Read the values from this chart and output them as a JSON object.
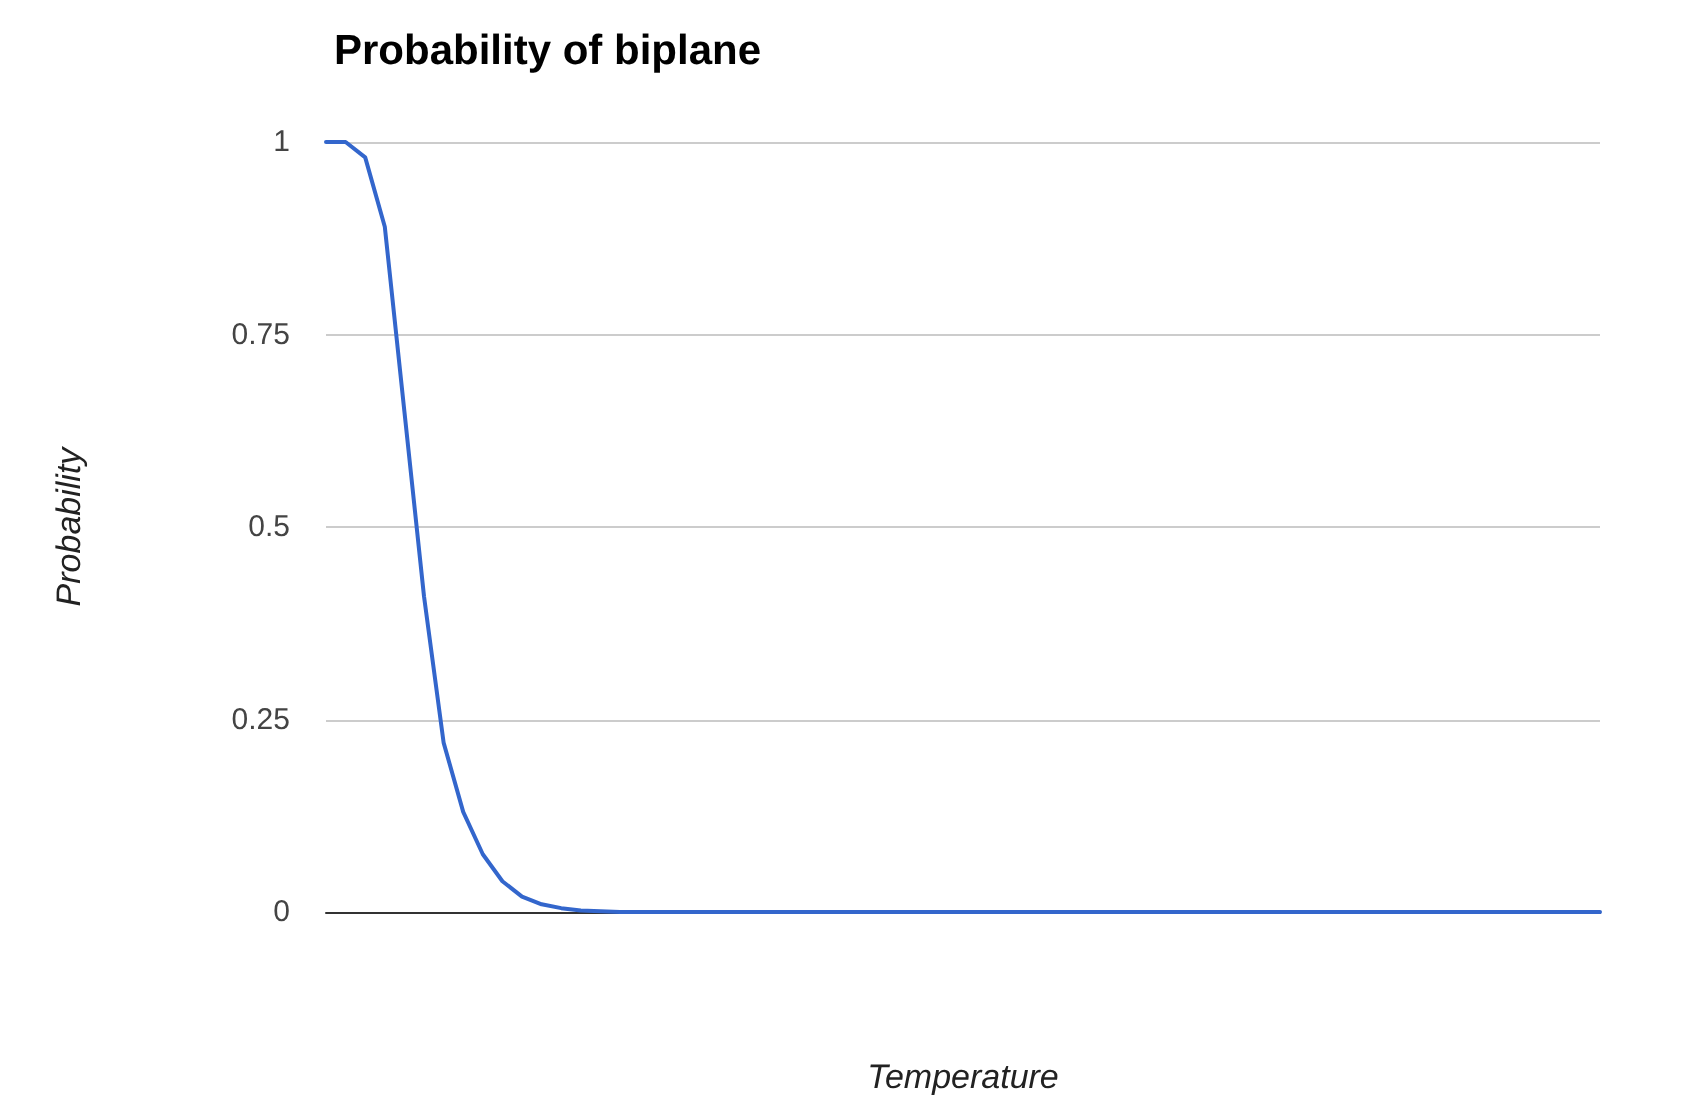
{
  "chart_data": {
    "type": "line",
    "title": "Probability of biplane",
    "xlabel": "Temperature",
    "ylabel": "Probability",
    "categories": [
      null,
      null,
      null,
      null,
      null,
      null,
      null,
      null,
      null,
      null,
      null,
      null,
      null,
      null,
      null,
      null,
      null,
      null,
      null,
      null,
      null,
      null,
      null,
      null,
      null,
      null,
      null,
      null,
      null,
      null,
      null,
      null,
      null,
      null,
      null,
      null,
      null,
      null,
      null,
      null,
      null,
      null,
      null,
      null,
      null,
      null,
      null,
      null,
      null,
      null,
      null,
      null,
      null,
      null,
      null,
      null,
      null,
      null,
      null,
      null,
      null,
      null,
      null,
      null,
      null,
      null
    ],
    "series": [
      {
        "color": "#3366cc",
        "values": [
          1,
          1,
          0.98,
          0.89,
          0.65,
          0.41,
          0.22,
          0.13,
          0.075,
          0.04,
          0.02,
          0.01,
          0.005,
          0.002,
          0.001,
          0,
          0,
          0,
          0,
          0,
          0,
          0,
          0,
          0,
          0,
          0,
          0,
          0,
          0,
          0,
          0,
          0,
          0,
          0,
          0,
          0,
          0,
          0,
          0,
          0,
          0,
          0,
          0,
          0,
          0,
          0,
          0,
          0,
          0,
          0,
          0,
          0,
          0,
          0,
          0,
          0,
          0,
          0,
          0,
          0,
          0,
          0,
          0,
          0,
          0,
          0
        ]
      }
    ],
    "ylim": [
      0,
      1
    ],
    "yticks": [
      0,
      0.25,
      0.5,
      0.75,
      1
    ],
    "grid": "y",
    "tick_labels": "y",
    "marker": "none",
    "line_style": "solid"
  }
}
